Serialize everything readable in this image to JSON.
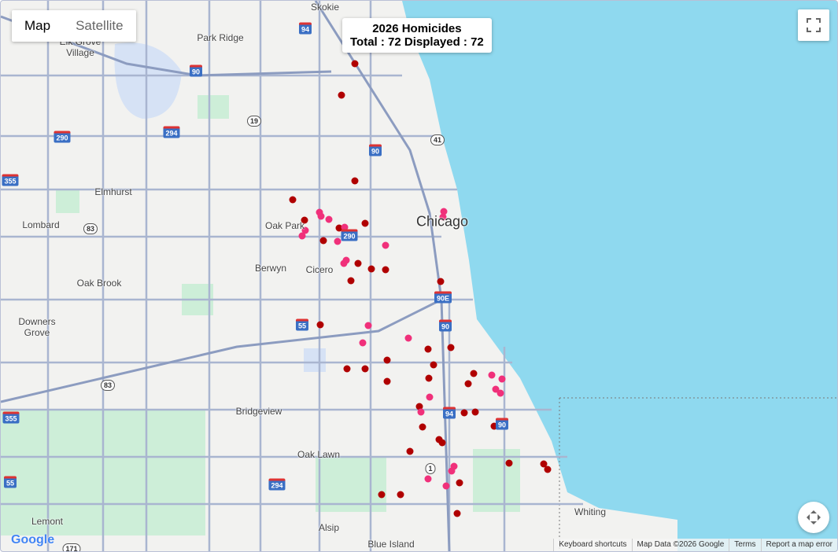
{
  "map_type_control": {
    "options": [
      "Map",
      "Satellite"
    ]
  },
  "info_box": {
    "title": "2026 Homicides",
    "subtitle": "Total : 72 Displayed : 72"
  },
  "place_labels": [
    "Skokie",
    "Park Ridge",
    "Elk Grove Village",
    "Elmhurst",
    "Lombard",
    "Oak Park",
    "Chicago",
    "Berwyn",
    "Cicero",
    "Oak Brook",
    "Downers Grove",
    "Bridgeview",
    "Oak Lawn",
    "Lemont",
    "Alsip",
    "Blue Island",
    "Whiting"
  ],
  "highway_shields": [
    "94",
    "90",
    "290",
    "294",
    "19",
    "90",
    "41",
    "355",
    "290",
    "83",
    "90E",
    "55",
    "90",
    "83",
    "94",
    "90",
    "355",
    "55",
    "294",
    "1",
    "171"
  ],
  "footer": {
    "logo": "Google",
    "links": [
      "Keyboard shortcuts",
      "Map Data ©2026 Google",
      "Terms",
      "Report a map error"
    ]
  }
}
